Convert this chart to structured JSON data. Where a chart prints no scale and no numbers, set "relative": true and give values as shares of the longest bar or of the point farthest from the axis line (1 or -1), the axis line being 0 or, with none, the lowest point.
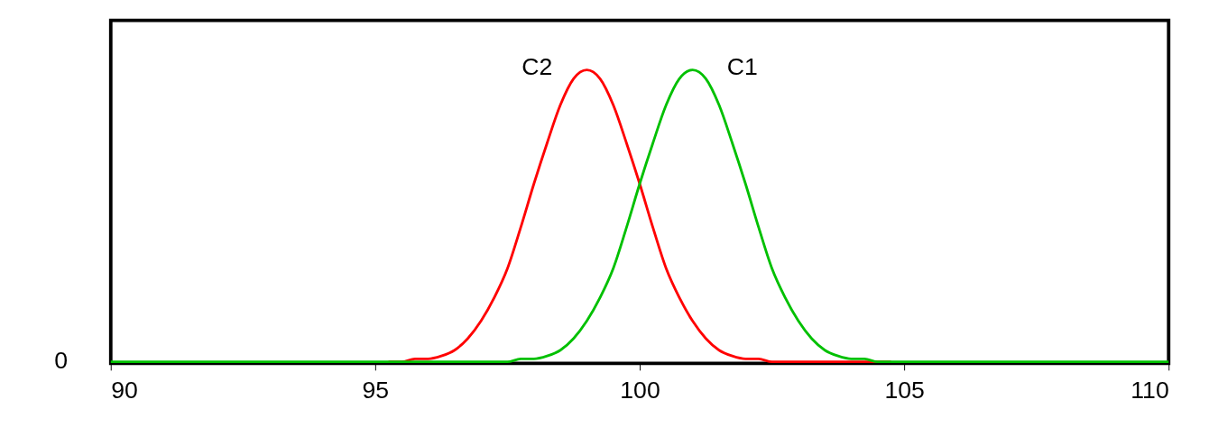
{
  "chart_data": {
    "type": "line",
    "relative": true,
    "x": [
      90,
      95,
      95.25,
      95.5,
      95.75,
      96,
      96.25,
      96.5,
      96.75,
      97,
      97.25,
      97.5,
      97.75,
      98,
      98.25,
      98.5,
      98.75,
      99,
      99.25,
      99.5,
      99.75,
      100,
      100.25,
      100.5,
      100.75,
      101,
      101.25,
      101.5,
      101.75,
      102,
      102.25,
      102.5,
      102.75,
      103,
      103.25,
      103.5,
      103.75,
      104,
      104.25,
      104.5,
      104.75,
      105,
      110
    ],
    "xlim": [
      90,
      110
    ],
    "xticks": [
      90,
      95,
      100,
      105,
      110
    ],
    "series": [
      {
        "name": "C2",
        "color": "#ff0000",
        "values": [
          null,
          null,
          0,
          0,
          0.01,
          0.01,
          0.02,
          0.04,
          0.08,
          0.14,
          0.22,
          0.32,
          0.46,
          0.61,
          0.75,
          0.88,
          0.97,
          1,
          0.97,
          0.88,
          0.75,
          0.61,
          0.46,
          0.32,
          0.22,
          0.14,
          0.08,
          0.04,
          0.02,
          0.01,
          0.01,
          0,
          0,
          0,
          0,
          0,
          0,
          0,
          0,
          0,
          0,
          null,
          null
        ]
      },
      {
        "name": "C1",
        "color": "#00c000",
        "values": [
          0,
          0,
          0,
          0,
          0,
          0,
          0,
          0,
          0,
          0,
          0,
          0,
          0.01,
          0.01,
          0.02,
          0.04,
          0.08,
          0.14,
          0.22,
          0.32,
          0.46,
          0.61,
          0.75,
          0.88,
          0.97,
          1,
          0.97,
          0.88,
          0.75,
          0.61,
          0.46,
          0.32,
          0.22,
          0.14,
          0.08,
          0.04,
          0.02,
          0.01,
          0.01,
          0,
          0,
          0,
          0
        ]
      }
    ],
    "annotations": [
      "0"
    ],
    "grid": false,
    "legend": false,
    "marker": "none",
    "line_style": "solid"
  }
}
